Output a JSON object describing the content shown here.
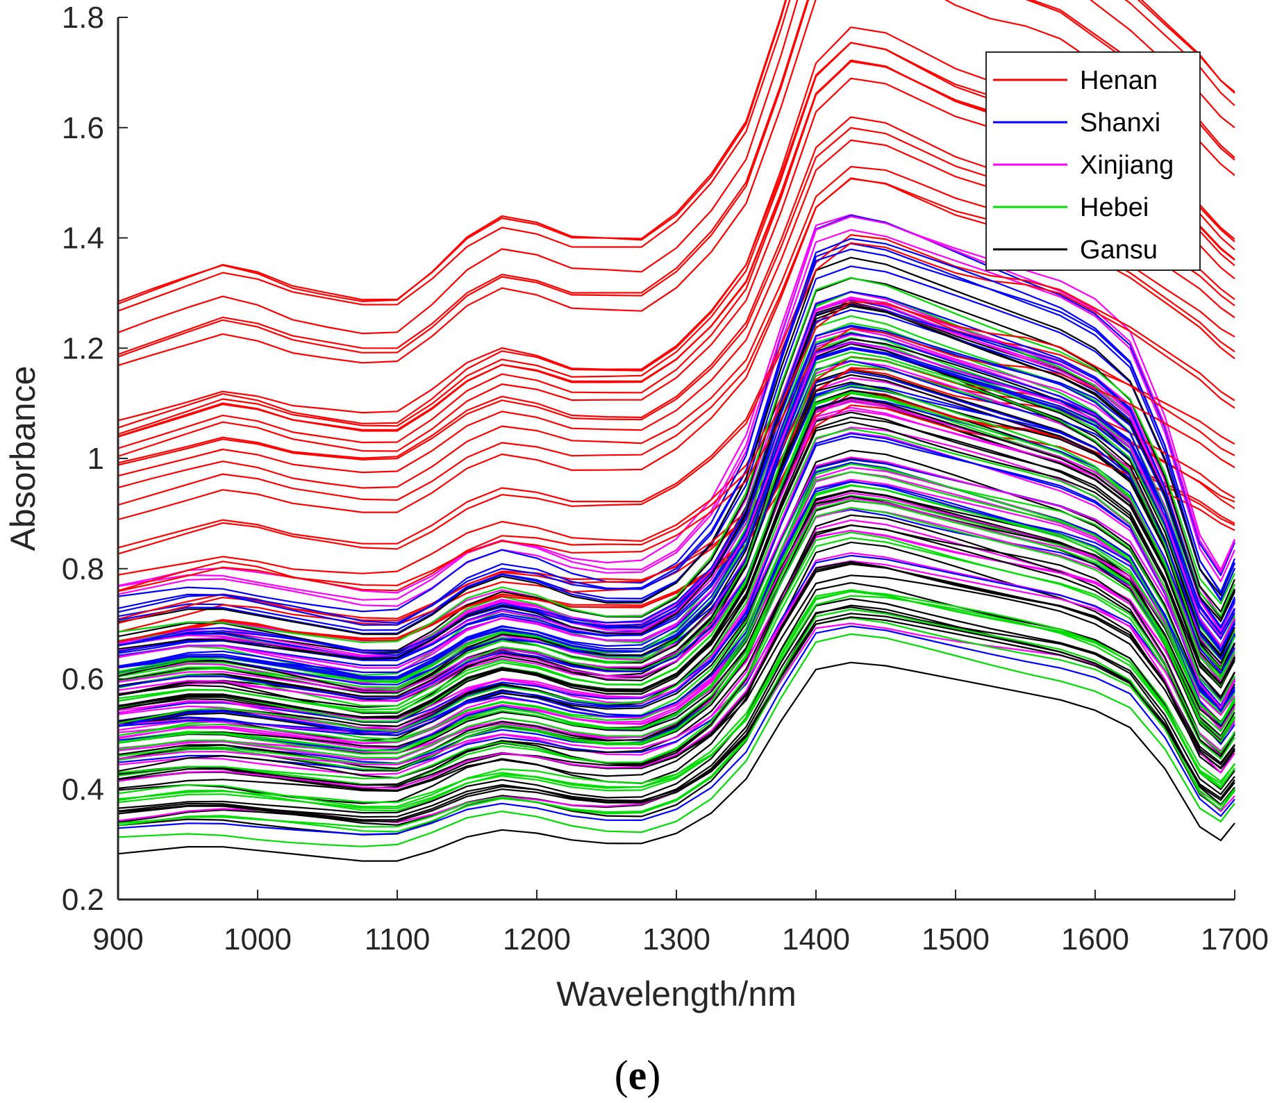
{
  "panel_label": {
    "open": "(",
    "letter": "e",
    "close": ")"
  },
  "chart_data": {
    "type": "line",
    "title": "",
    "xlabel": "Wavelength/nm",
    "ylabel": "Absorbance",
    "xlim": [
      900,
      1700
    ],
    "ylim": [
      0.2,
      1.8
    ],
    "xticks": [
      900,
      1000,
      1100,
      1200,
      1300,
      1400,
      1500,
      1600,
      1700
    ],
    "xtick_labels": [
      "900",
      "1000",
      "1100",
      "1200",
      "1300",
      "1400",
      "1500",
      "1600",
      "1700"
    ],
    "yticks": [
      0.2,
      0.4,
      0.6,
      0.8,
      1.0,
      1.2,
      1.4,
      1.6,
      1.8
    ],
    "ytick_labels": [
      "0.2",
      "0.4",
      "0.6",
      "0.8",
      "1",
      "1.2",
      "1.4",
      "1.6",
      "1.8"
    ],
    "grid": false,
    "legend_position": "top-right",
    "x": [
      900,
      925,
      950,
      975,
      1000,
      1025,
      1050,
      1075,
      1100,
      1125,
      1150,
      1175,
      1200,
      1225,
      1250,
      1275,
      1300,
      1325,
      1350,
      1375,
      1400,
      1425,
      1450,
      1475,
      1500,
      1525,
      1550,
      1575,
      1600,
      1625,
      1650,
      1675,
      1690,
      1700
    ],
    "series": [
      {
        "name": "Henan",
        "color": "#ff0000",
        "count": 30,
        "values": [
          1.04,
          1.06,
          1.08,
          1.1,
          1.09,
          1.07,
          1.06,
          1.05,
          1.05,
          1.09,
          1.14,
          1.17,
          1.16,
          1.14,
          1.14,
          1.14,
          1.18,
          1.24,
          1.32,
          1.48,
          1.66,
          1.72,
          1.71,
          1.68,
          1.65,
          1.63,
          1.62,
          1.6,
          1.56,
          1.52,
          1.47,
          1.42,
          1.38,
          1.36
        ]
      },
      {
        "name": "Shanxi",
        "color": "#0000ff",
        "count": 30,
        "values": [
          0.62,
          0.63,
          0.64,
          0.64,
          0.63,
          0.62,
          0.61,
          0.6,
          0.6,
          0.63,
          0.67,
          0.69,
          0.68,
          0.66,
          0.65,
          0.65,
          0.68,
          0.74,
          0.84,
          1.02,
          1.18,
          1.2,
          1.19,
          1.17,
          1.15,
          1.13,
          1.11,
          1.09,
          1.06,
          1.01,
          0.88,
          0.7,
          0.65,
          0.7
        ]
      },
      {
        "name": "Xinjiang",
        "color": "#ff00ff",
        "count": 30,
        "values": [
          0.64,
          0.65,
          0.66,
          0.66,
          0.65,
          0.64,
          0.63,
          0.62,
          0.62,
          0.65,
          0.69,
          0.71,
          0.7,
          0.68,
          0.67,
          0.67,
          0.7,
          0.76,
          0.86,
          1.03,
          1.19,
          1.21,
          1.2,
          1.18,
          1.16,
          1.14,
          1.12,
          1.1,
          1.07,
          1.02,
          0.89,
          0.71,
          0.66,
          0.71
        ]
      },
      {
        "name": "Hebei",
        "color": "#00dd00",
        "count": 30,
        "values": [
          0.56,
          0.57,
          0.58,
          0.58,
          0.57,
          0.56,
          0.55,
          0.54,
          0.54,
          0.57,
          0.61,
          0.63,
          0.62,
          0.6,
          0.59,
          0.59,
          0.62,
          0.68,
          0.78,
          0.95,
          1.1,
          1.12,
          1.11,
          1.09,
          1.07,
          1.05,
          1.03,
          1.01,
          0.98,
          0.93,
          0.81,
          0.64,
          0.6,
          0.65
        ]
      },
      {
        "name": "Gansu",
        "color": "#000000",
        "count": 40,
        "values": [
          0.55,
          0.56,
          0.57,
          0.57,
          0.56,
          0.55,
          0.54,
          0.53,
          0.53,
          0.56,
          0.6,
          0.62,
          0.61,
          0.59,
          0.58,
          0.58,
          0.61,
          0.67,
          0.77,
          0.94,
          1.09,
          1.11,
          1.1,
          1.08,
          1.06,
          1.04,
          1.02,
          1.0,
          0.97,
          0.92,
          0.8,
          0.63,
          0.59,
          0.64
        ]
      }
    ]
  }
}
